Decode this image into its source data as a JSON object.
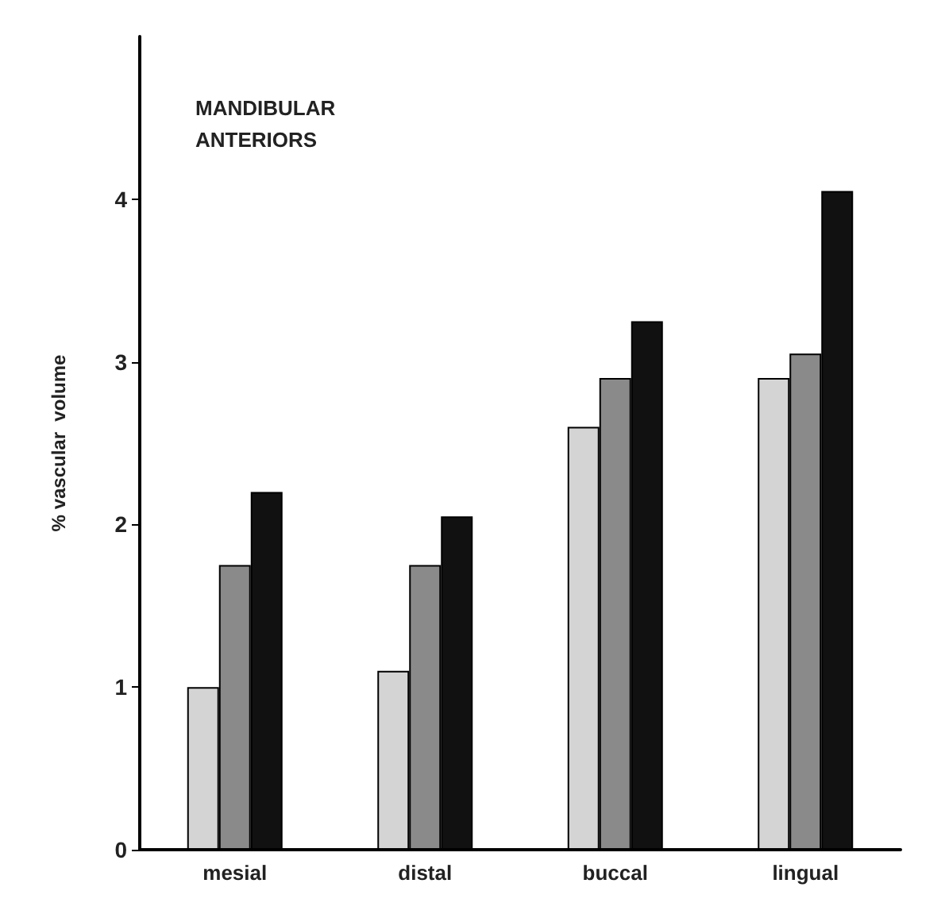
{
  "chart_data": {
    "type": "bar",
    "title": "MANDIBULAR\nANTERIORS",
    "ylabel": "% vascular  volume",
    "categories": [
      "mesial",
      "distal",
      "buccal",
      "lingual"
    ],
    "series": [
      {
        "color": "#d4d4d4",
        "values": [
          1.0,
          1.1,
          2.6,
          2.9
        ]
      },
      {
        "color": "#8a8a8a",
        "values": [
          1.75,
          1.75,
          2.9,
          3.05
        ]
      },
      {
        "color": "#111111",
        "values": [
          2.2,
          2.05,
          3.25,
          4.05
        ]
      }
    ],
    "ylim": [
      0,
      5
    ],
    "yticks": [
      0,
      1,
      2,
      3,
      4
    ],
    "grid": false
  }
}
